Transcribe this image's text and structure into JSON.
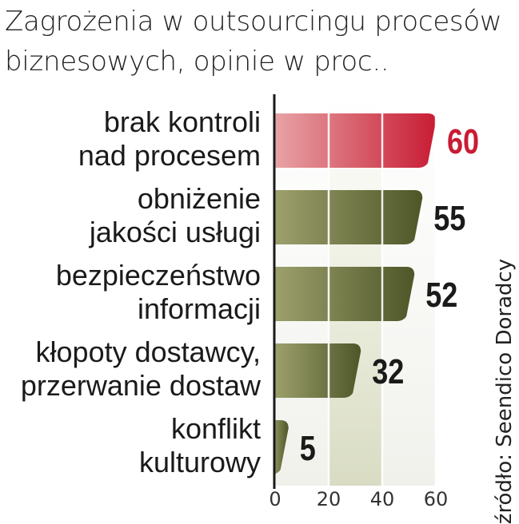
{
  "title_line1": "Zagrożenia w outsourcingu procesów",
  "title_line2": "biznesowych, opinie  w proc..",
  "source": "źródło: Seendico Doradcy",
  "colors": {
    "highlight": "#c81c34",
    "bar": "#5b6332",
    "text": "#1a1a1a"
  },
  "chart_data": {
    "type": "bar",
    "orientation": "horizontal",
    "categories": [
      [
        "brak kontroli",
        "nad procesem"
      ],
      [
        "obniżenie",
        "jakości usługi"
      ],
      [
        "bezpieczeństwo",
        "informacji"
      ],
      [
        "kłopoty dostawcy,",
        "przerwanie dostaw"
      ],
      [
        "konflikt",
        "kulturowy"
      ]
    ],
    "values": [
      60,
      55,
      52,
      32,
      5
    ],
    "value_labels": [
      "60",
      "55",
      "52",
      "32",
      "5"
    ],
    "highlight_index": 0,
    "xlim": [
      0,
      60
    ],
    "xticks": [
      0,
      20,
      40,
      60
    ],
    "xtick_labels": [
      "0",
      "20",
      "40",
      "60"
    ],
    "grid": true
  }
}
